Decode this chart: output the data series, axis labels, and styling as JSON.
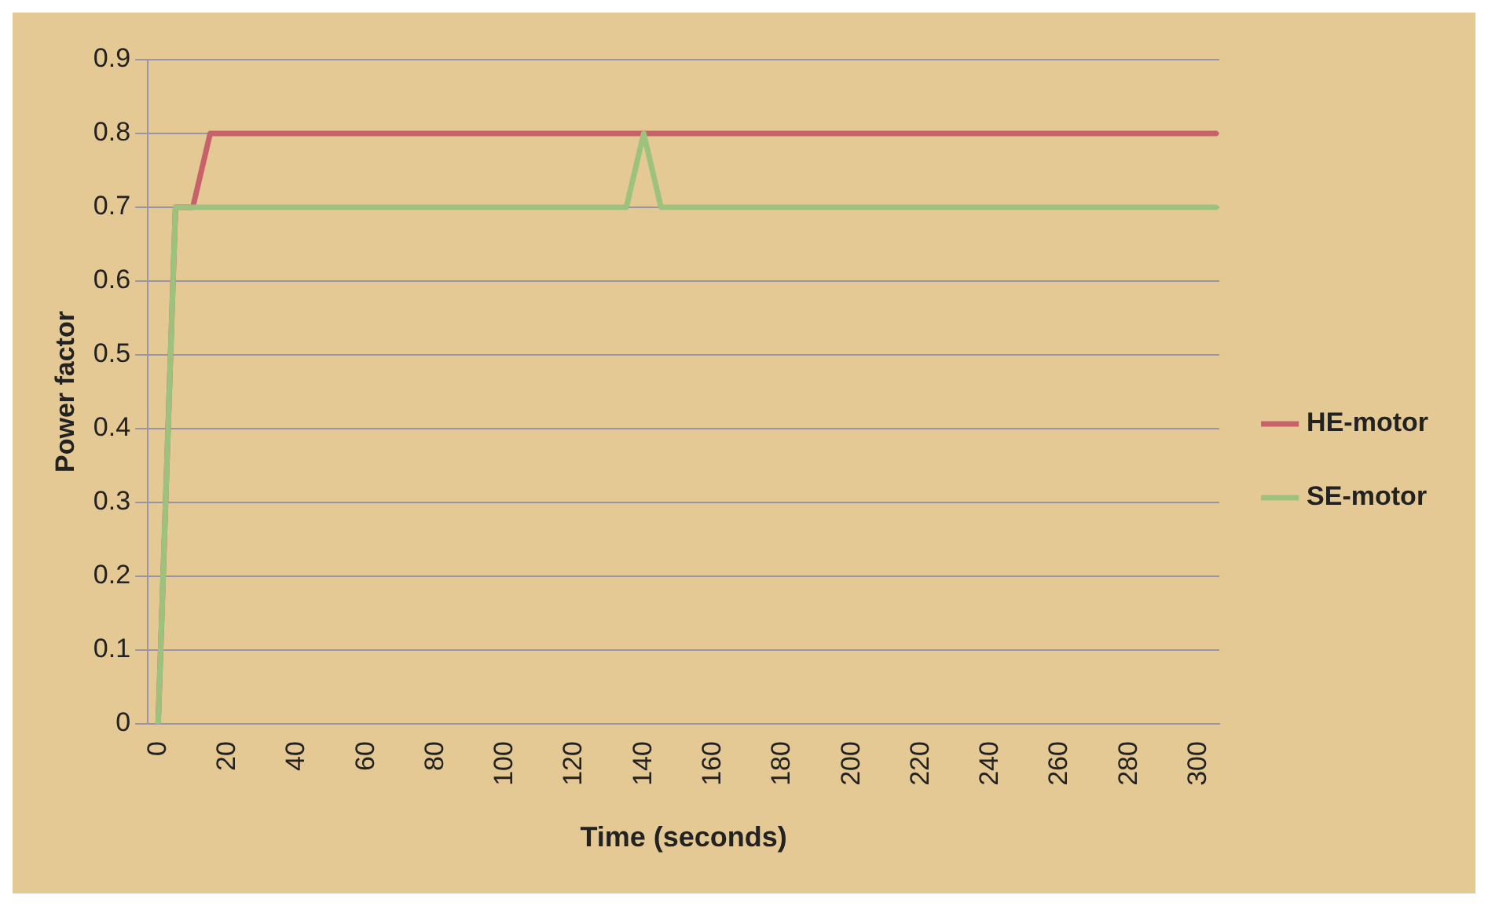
{
  "chart_data": {
    "type": "line",
    "xlabel": "Time (seconds)",
    "ylabel": "Power factor",
    "xlim": [
      -3,
      306
    ],
    "xticks": [
      0,
      20,
      40,
      60,
      80,
      100,
      120,
      140,
      160,
      180,
      200,
      220,
      240,
      260,
      280,
      300
    ],
    "ylim": [
      0,
      0.9
    ],
    "yticks": [
      0,
      0.1,
      0.2,
      0.3,
      0.4,
      0.5,
      0.6,
      0.7,
      0.8,
      0.9
    ],
    "grid": "y",
    "legend": "right",
    "marker": "none",
    "series": [
      {
        "name": "HE-motor",
        "color": "#c8626a",
        "x": [
          0,
          5,
          10,
          15,
          305
        ],
        "values": [
          0,
          0.7,
          0.7,
          0.8,
          0.8
        ]
      },
      {
        "name": "SE-motor",
        "color": "#9dc27e",
        "x": [
          0,
          5,
          135,
          140,
          145,
          305
        ],
        "values": [
          0,
          0.7,
          0.7,
          0.8,
          0.7,
          0.7
        ]
      }
    ]
  }
}
